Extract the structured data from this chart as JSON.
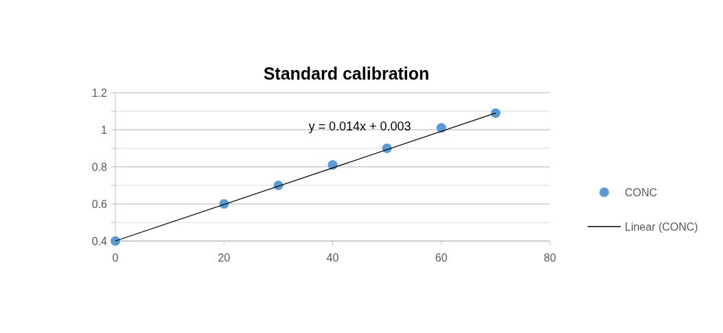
{
  "chart_data": {
    "type": "scatter",
    "title": "Standard calibration",
    "series": [
      {
        "name": "CONC",
        "color": "#5b9bd5",
        "x": [
          0,
          20,
          30,
          40,
          50,
          60,
          70
        ],
        "values": [
          0.4,
          0.6,
          0.7,
          0.81,
          0.9,
          1.01,
          1.09
        ]
      },
      {
        "name": "Linear (CONC)",
        "type": "line",
        "color": "#000000",
        "x": [
          0,
          70
        ],
        "values": [
          0.4,
          1.09
        ]
      }
    ],
    "xlim": [
      0,
      80
    ],
    "xticks": [
      0,
      20,
      40,
      60,
      80
    ],
    "ylim": [
      0.4,
      1.2
    ],
    "yticks": [
      0.4,
      {
        "value": 0.5,
        "label": null
      },
      0.6,
      {
        "value": 0.7,
        "label": null
      },
      0.8,
      {
        "value": 0.9,
        "label": null
      },
      1,
      {
        "value": 1.1,
        "label": null
      },
      1.2
    ],
    "grid": "y",
    "legend": "right",
    "annotations": [
      "y = 0.014x + 0.003"
    ]
  }
}
